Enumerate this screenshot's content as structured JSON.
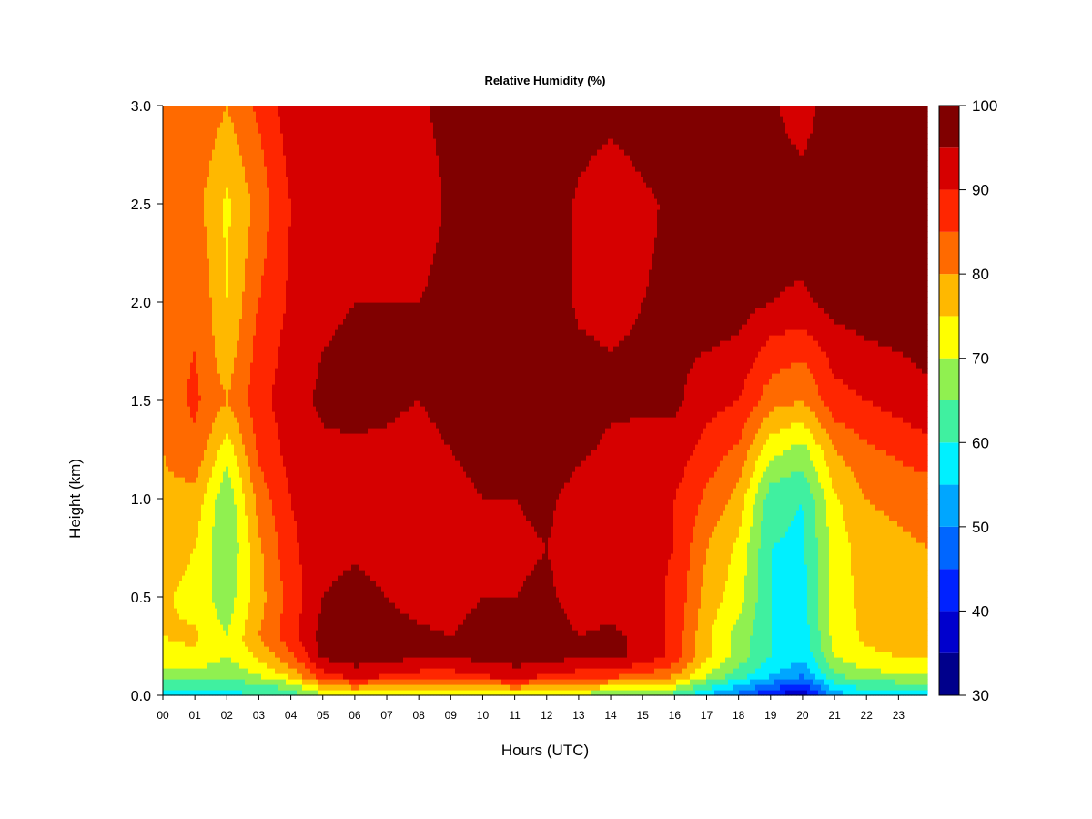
{
  "chart_data": {
    "type": "heatmap",
    "title": "Relative Humidity (%)",
    "xlabel": "Hours (UTC)",
    "ylabel": "Height (km)",
    "x_tick_labels": [
      "00",
      "01",
      "02",
      "03",
      "04",
      "05",
      "06",
      "07",
      "08",
      "09",
      "10",
      "11",
      "12",
      "13",
      "14",
      "15",
      "16",
      "17",
      "18",
      "19",
      "20",
      "21",
      "22",
      "23"
    ],
    "xlim": [
      0,
      23.9
    ],
    "ylim": [
      0,
      3.0
    ],
    "y_ticks": [
      0.0,
      0.5,
      1.0,
      1.5,
      2.0,
      2.5,
      3.0
    ],
    "y_tick_labels": [
      "0.0",
      "0.5",
      "1.0",
      "1.5",
      "2.0",
      "2.5",
      "3.0"
    ],
    "colorbar": {
      "levels": [
        30,
        35,
        40,
        45,
        50,
        55,
        60,
        65,
        70,
        75,
        80,
        85,
        90,
        95,
        100
      ],
      "colors": [
        "#00008b",
        "#0000cd",
        "#0022ff",
        "#0066ff",
        "#00a6ff",
        "#00f0ff",
        "#40f0a0",
        "#90f050",
        "#ffff00",
        "#ffb800",
        "#ff6a00",
        "#ff2600",
        "#d60000",
        "#800000"
      ],
      "tick_values": [
        30,
        40,
        50,
        60,
        70,
        80,
        90,
        100
      ],
      "tick_labels": [
        "30",
        "40",
        "50",
        "60",
        "70",
        "80",
        "90",
        "100"
      ]
    },
    "heights_km": [
      0.0,
      0.05,
      0.1,
      0.2,
      0.3,
      0.5,
      0.75,
      1.0,
      1.25,
      1.5,
      1.75,
      2.0,
      2.5,
      3.0
    ],
    "hours": [
      0,
      1,
      2,
      3,
      4,
      5,
      6,
      7,
      8,
      9,
      10,
      11,
      12,
      13,
      14,
      15,
      16,
      17,
      18,
      19,
      20,
      21,
      22,
      23.9
    ],
    "rh_values": [
      [
        58,
        62,
        67,
        73,
        75,
        76,
        78,
        79,
        80,
        82,
        83,
        84,
        80,
        82
      ],
      [
        58,
        62,
        68,
        74,
        76,
        73,
        75,
        78,
        84,
        86,
        85,
        85,
        82,
        85
      ],
      [
        58,
        62,
        66,
        70,
        70,
        67,
        65,
        66,
        72,
        80,
        77,
        75,
        74,
        80
      ],
      [
        60,
        64,
        70,
        76,
        80,
        78,
        79,
        82,
        86,
        88,
        87,
        85,
        82,
        86
      ],
      [
        62,
        67,
        76,
        84,
        88,
        87,
        89,
        90,
        92,
        93,
        92,
        91,
        90,
        93
      ],
      [
        68,
        78,
        88,
        96,
        97,
        95,
        93,
        93,
        94,
        96,
        95,
        94,
        92,
        94
      ],
      [
        72,
        82,
        92,
        98,
        99,
        97,
        94,
        93,
        94,
        97,
        96,
        95,
        94,
        95
      ],
      [
        70,
        80,
        90,
        97,
        97,
        95,
        93,
        92,
        94,
        96,
        96,
        95,
        93,
        95
      ],
      [
        68,
        78,
        88,
        96,
        96,
        93,
        91,
        91,
        93,
        95,
        95,
        95,
        92,
        94
      ],
      [
        68,
        78,
        88,
        95,
        95,
        93,
        92,
        93,
        95,
        97,
        97,
        97,
        96,
        97
      ],
      [
        70,
        80,
        90,
        97,
        97,
        95,
        94,
        95,
        97,
        98,
        98,
        99,
        99,
        99
      ],
      [
        72,
        82,
        92,
        98,
        97,
        95,
        94,
        95,
        97,
        99,
        99,
        99,
        99,
        99
      ],
      [
        70,
        80,
        90,
        98,
        98,
        96,
        95,
        96,
        98,
        99,
        99,
        99,
        99,
        99
      ],
      [
        68,
        78,
        88,
        95,
        95,
        93,
        92,
        93,
        96,
        97,
        96,
        94,
        94,
        98
      ],
      [
        66,
        76,
        86,
        96,
        96,
        93,
        92,
        92,
        94,
        96,
        95,
        93,
        91,
        97
      ],
      [
        66,
        76,
        84,
        94,
        94,
        92,
        91,
        91,
        93,
        96,
        96,
        95,
        94,
        98
      ],
      [
        62,
        72,
        80,
        88,
        88,
        89,
        90,
        90,
        93,
        96,
        96,
        96,
        96,
        99
      ],
      [
        55,
        62,
        70,
        76,
        76,
        78,
        80,
        84,
        88,
        92,
        95,
        97,
        99,
        99
      ],
      [
        48,
        55,
        62,
        68,
        68,
        72,
        74,
        78,
        84,
        90,
        94,
        97,
        99,
        99
      ],
      [
        40,
        48,
        55,
        60,
        60,
        60,
        60,
        62,
        72,
        82,
        88,
        95,
        98,
        96
      ],
      [
        35,
        43,
        50,
        56,
        57,
        58,
        59,
        60,
        68,
        80,
        86,
        94,
        98,
        92
      ],
      [
        52,
        58,
        64,
        70,
        72,
        72,
        72,
        74,
        80,
        88,
        92,
        97,
        99,
        99
      ],
      [
        57,
        62,
        68,
        74,
        76,
        77,
        78,
        80,
        84,
        90,
        94,
        98,
        99,
        99
      ],
      [
        58,
        63,
        70,
        76,
        78,
        80,
        80,
        82,
        88,
        94,
        96,
        98,
        99,
        99
      ]
    ]
  }
}
